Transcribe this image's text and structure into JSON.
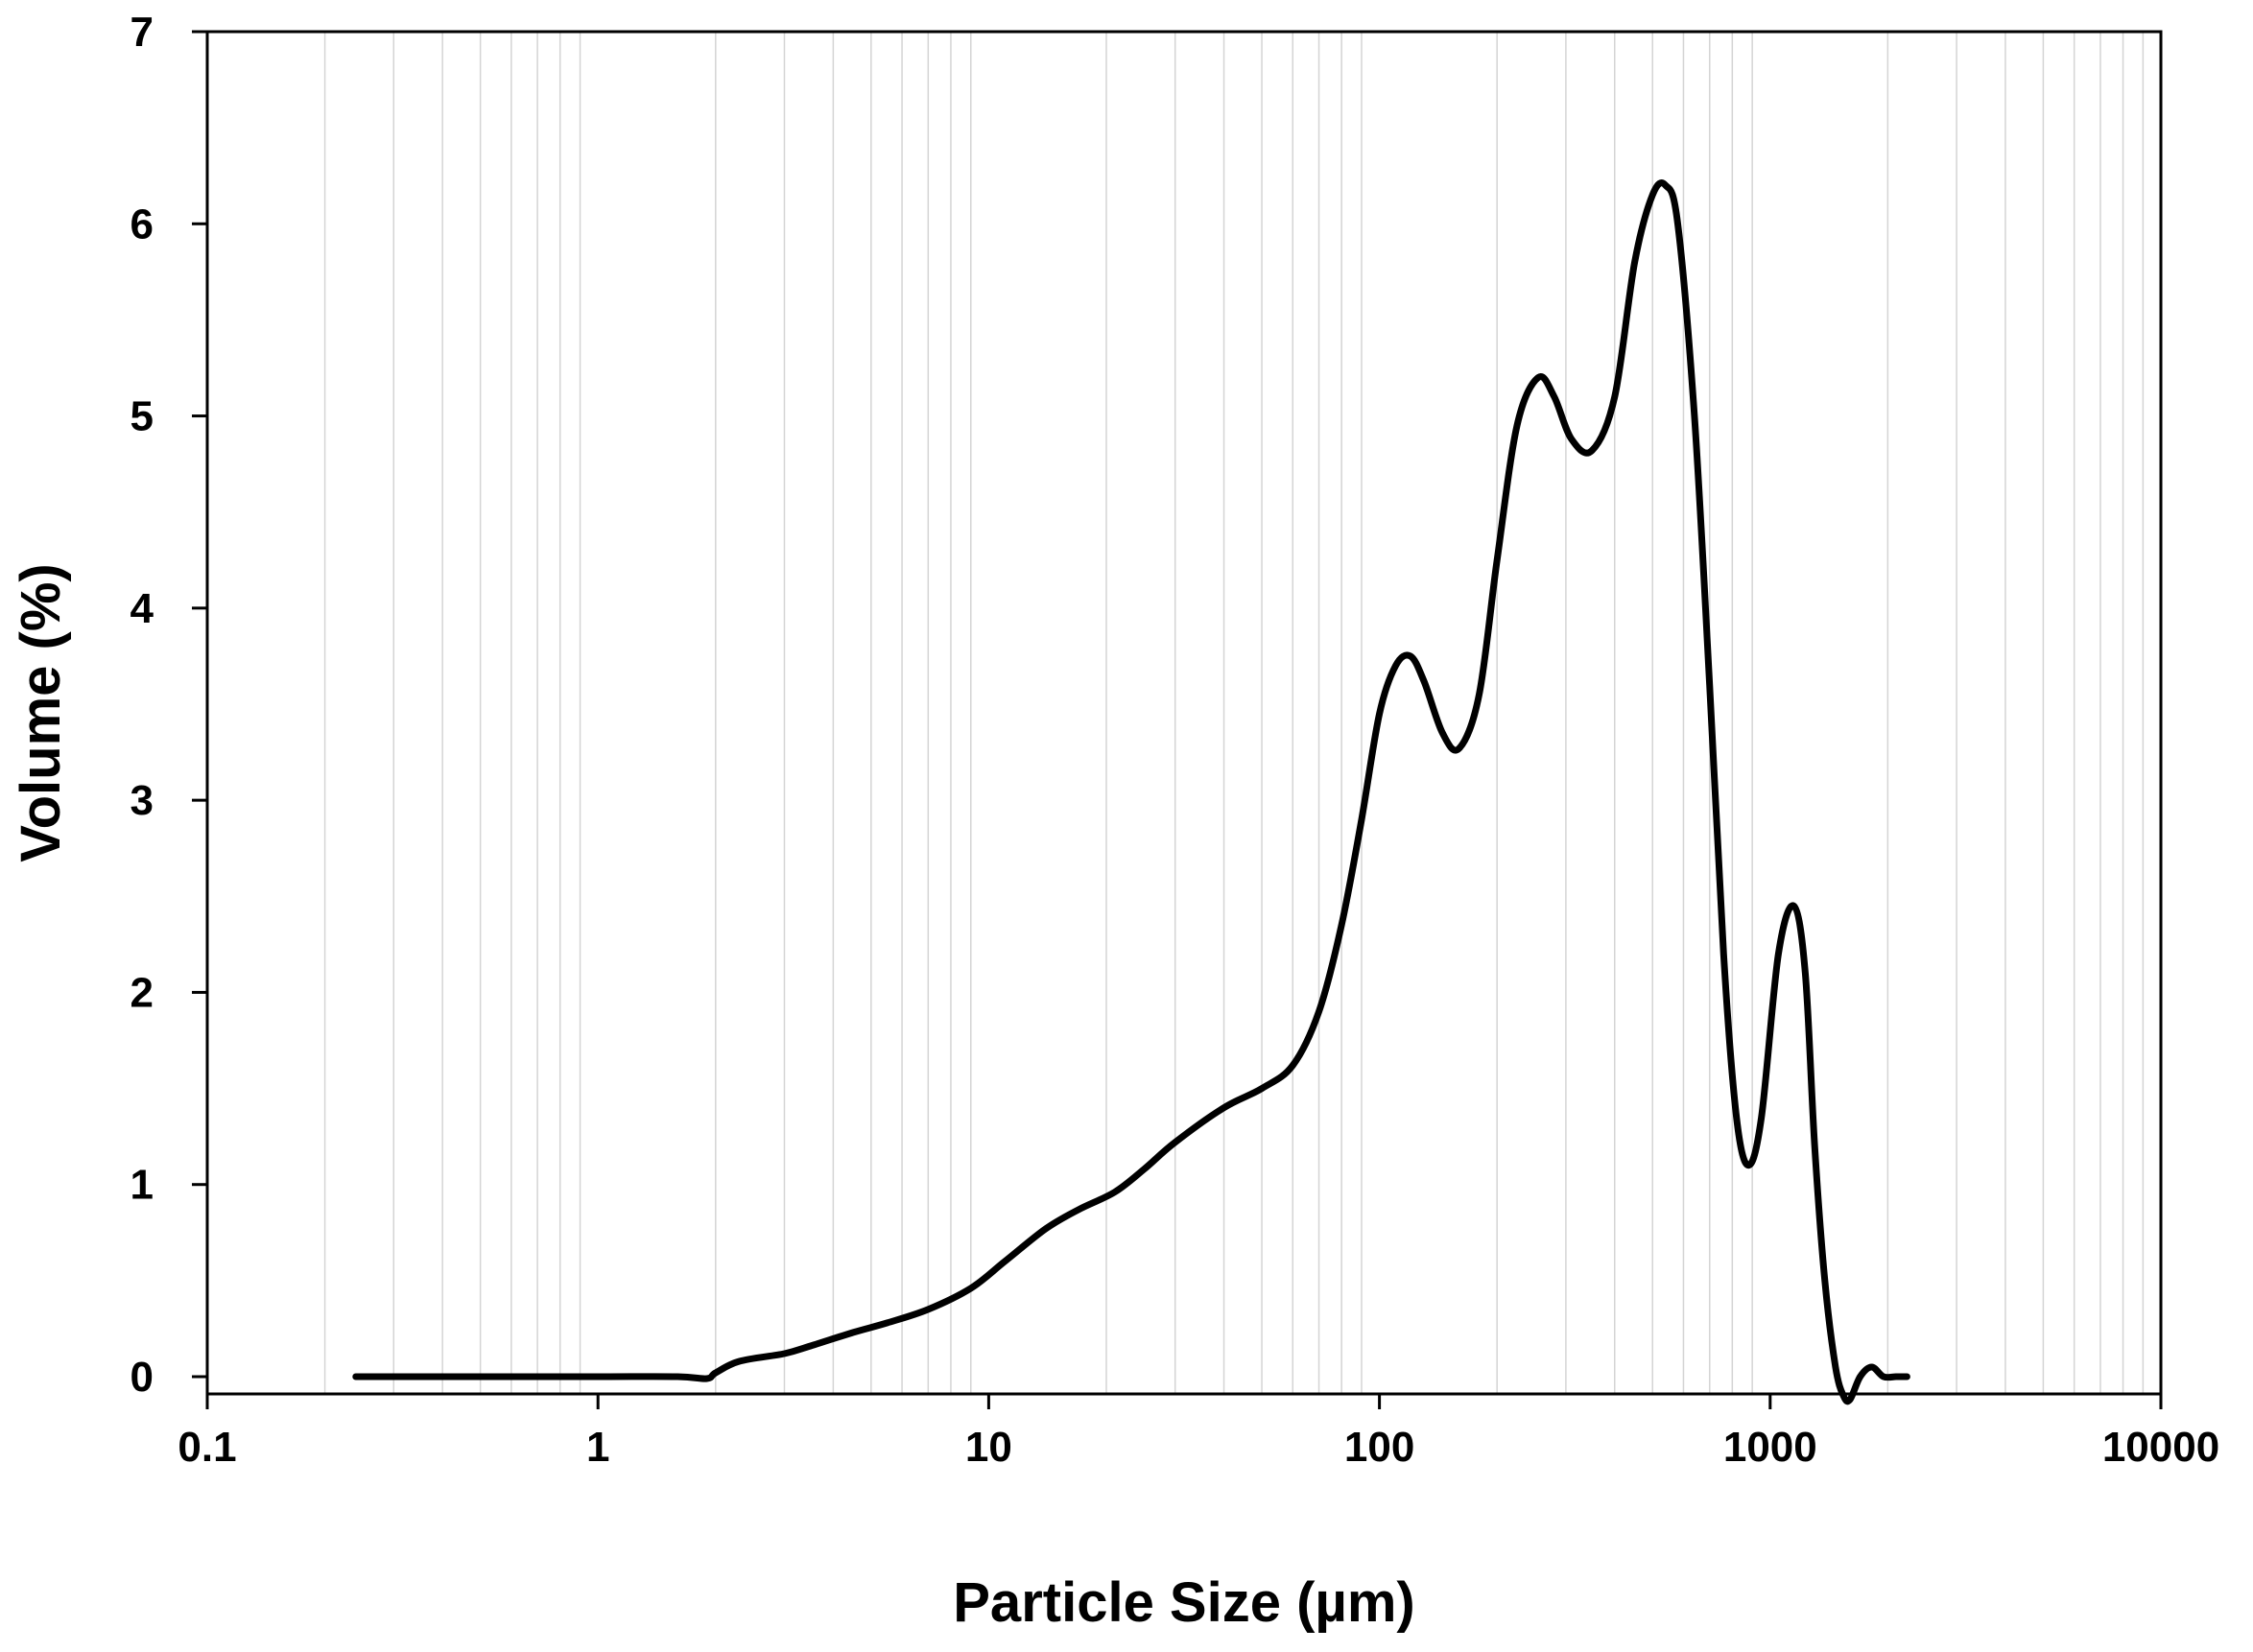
{
  "chart_data": {
    "type": "line",
    "xlabel": "Particle Size (µm)",
    "ylabel": "Volume (%)",
    "x_scale": "log",
    "xlim": [
      0.1,
      10000
    ],
    "ylim": [
      0,
      7
    ],
    "x_ticks": [
      "0.1",
      "1",
      "10",
      "100",
      "1000",
      "10000"
    ],
    "y_ticks": [
      "0",
      "1",
      "2",
      "3",
      "4",
      "5",
      "6",
      "7"
    ],
    "grid": "vertical minor log gridlines",
    "legend": "none",
    "colors": {
      "line": "#000000",
      "grid": "#d4d4d4"
    },
    "series": [
      {
        "x": [
          0.24,
          0.5,
          1.0,
          1.6,
          1.9,
          2.0,
          2.3,
          3.0,
          3.5,
          4.5,
          5.5,
          7.0,
          9.0,
          11.0,
          14.0,
          17.0,
          21.0,
          25.0,
          30.0,
          40.0,
          50.0,
          60.0,
          70.0,
          80.0,
          90.0,
          100.0,
          110.0,
          120.0,
          130.0,
          145.0,
          160.0,
          180.0,
          200.0,
          225.0,
          255.0,
          280.0,
          310.0,
          350.0,
          400.0,
          450.0,
          500.0,
          540.0,
          580.0,
          640.0,
          700.0,
          760.0,
          820.0,
          880.0,
          950.0,
          1050.0,
          1150.0,
          1230.0,
          1300.0,
          1380.0,
          1470.0,
          1540.0,
          1600.0,
          1700.0,
          1820.0,
          1950.0,
          2100.0,
          2240.0
        ],
        "y": [
          0.0,
          0.0,
          0.0,
          0.0,
          -0.01,
          0.02,
          0.08,
          0.12,
          0.16,
          0.23,
          0.28,
          0.35,
          0.46,
          0.6,
          0.77,
          0.87,
          0.96,
          1.08,
          1.22,
          1.4,
          1.5,
          1.62,
          1.9,
          2.35,
          2.9,
          3.45,
          3.7,
          3.75,
          3.62,
          3.35,
          3.27,
          3.55,
          4.25,
          4.95,
          5.2,
          5.1,
          4.88,
          4.82,
          5.1,
          5.8,
          6.15,
          6.2,
          6.0,
          5.0,
          3.6,
          2.2,
          1.35,
          1.1,
          1.35,
          2.2,
          2.45,
          2.1,
          1.2,
          0.5,
          0.05,
          -0.1,
          -0.12,
          0.0,
          0.05,
          0.0,
          0.0,
          0.0
        ]
      }
    ]
  }
}
